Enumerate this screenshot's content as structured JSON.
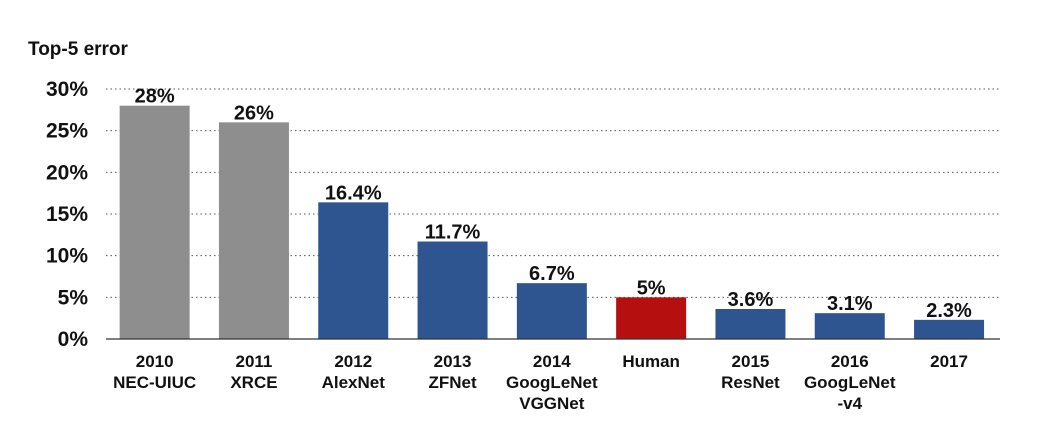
{
  "chart_data": {
    "type": "bar",
    "ylabel": "Top-5 error",
    "ylim": [
      0,
      30
    ],
    "yticks": [
      0,
      5,
      10,
      15,
      20,
      25,
      30
    ],
    "ytick_labels": [
      "0%",
      "5%",
      "10%",
      "15%",
      "20%",
      "25%",
      "30%"
    ],
    "grid": true,
    "categories": [
      [
        "2010",
        "NEC-UIUC"
      ],
      [
        "2011",
        "XRCE"
      ],
      [
        "2012",
        "AlexNet"
      ],
      [
        "2013",
        "ZFNet"
      ],
      [
        "2014",
        "GoogLeNet",
        "VGGNet"
      ],
      [
        "Human"
      ],
      [
        "2015",
        "ResNet"
      ],
      [
        "2016",
        "GoogLeNet",
        "-v4"
      ],
      [
        "2017"
      ]
    ],
    "values": [
      28,
      26,
      16.4,
      11.7,
      6.7,
      5,
      3.6,
      3.1,
      2.3
    ],
    "value_labels": [
      "28%",
      "26%",
      "16.4%",
      "11.7%",
      "6.7%",
      "5%",
      "3.6%",
      "3.1%",
      "2.3%"
    ],
    "colors": [
      "#8e8e8e",
      "#8e8e8e",
      "#2f5590",
      "#2f5590",
      "#2f5590",
      "#b50f0f",
      "#2f5590",
      "#2f5590",
      "#2f5590"
    ]
  }
}
